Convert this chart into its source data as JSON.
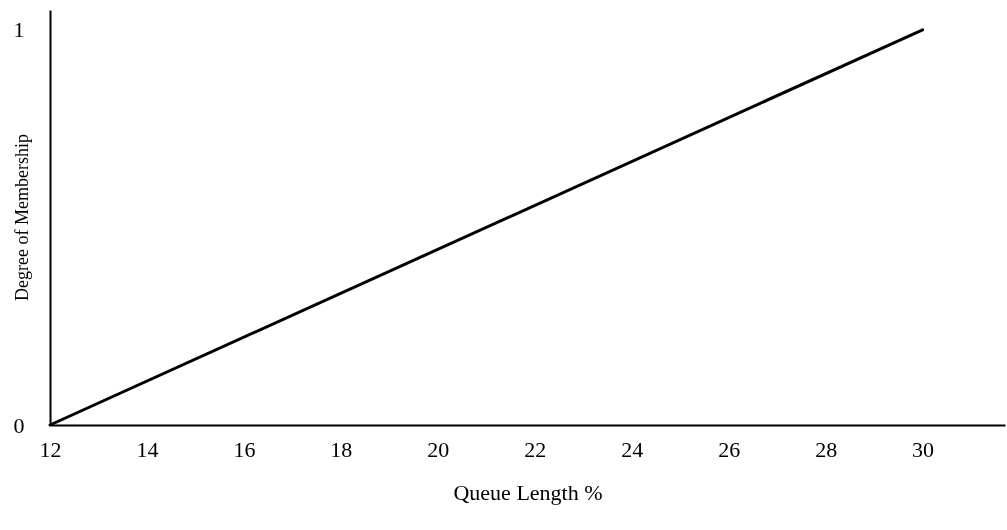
{
  "chart_data": {
    "type": "line",
    "xlabel": "Queue Length %",
    "ylabel": "Degree of Membership",
    "x": [
      12,
      30
    ],
    "series": [
      {
        "color": "#000000",
        "values": [
          0,
          1
        ]
      }
    ],
    "xlim": [
      12,
      31.7
    ],
    "xticks": [
      12,
      14,
      16,
      18,
      20,
      22,
      24,
      26,
      28,
      30
    ],
    "ylim": [
      0,
      1.05
    ],
    "yticks": [
      0,
      1
    ],
    "grid": false,
    "marker": "none",
    "line_style": "solid"
  }
}
